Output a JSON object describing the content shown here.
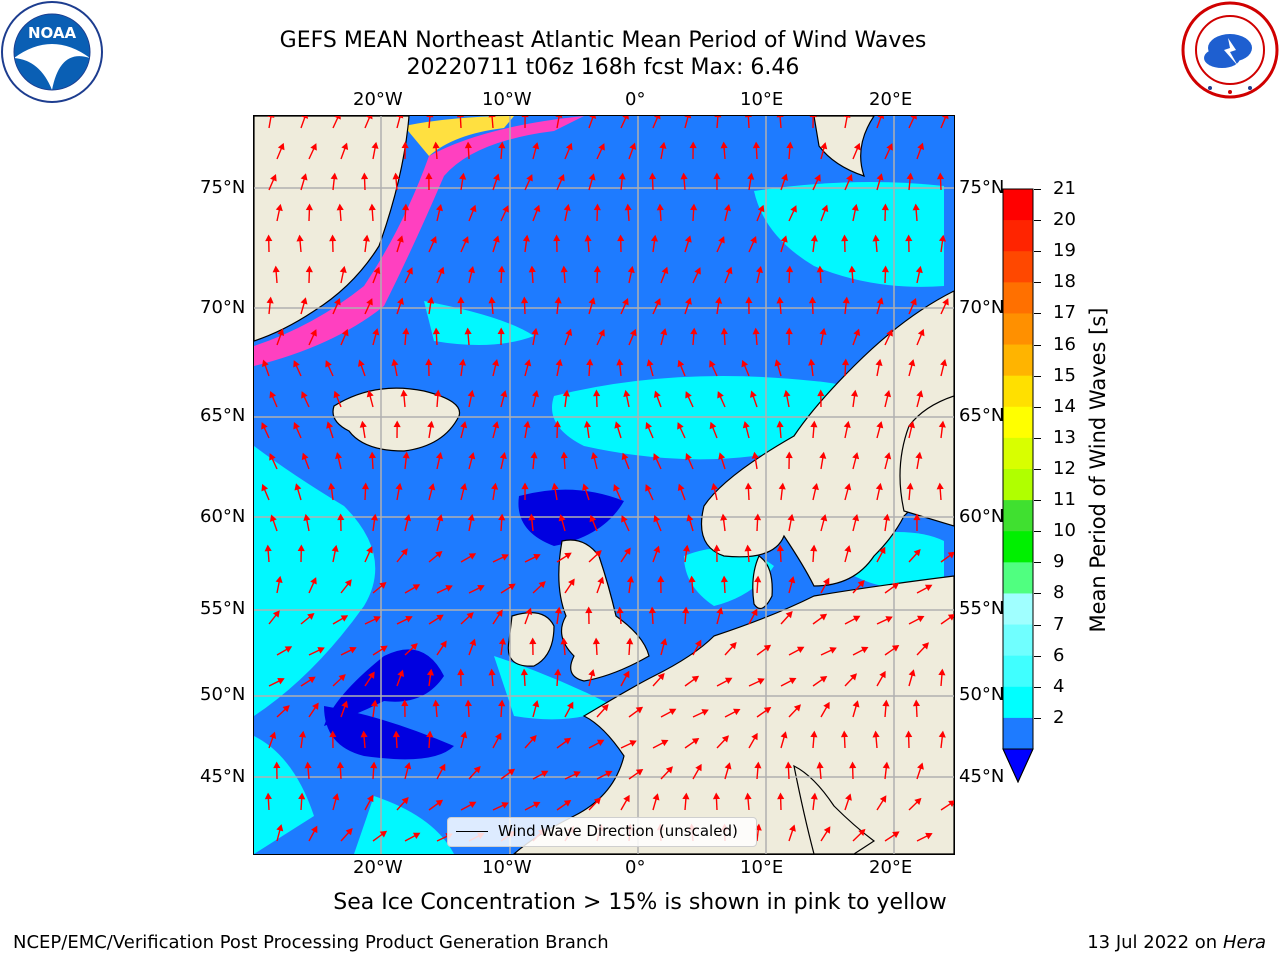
{
  "header": {
    "title_line1": "GEFS MEAN Northeast Atlantic Mean Period of Wind Waves",
    "title_line2": "20220711 t06z 168h fcst   Max: 6.46"
  },
  "logos": {
    "left": {
      "name": "NOAA",
      "text": "NOAA"
    },
    "right": {
      "name": "National Weather Service"
    }
  },
  "map": {
    "lon_ticks_top": [
      "20°W",
      "10°W",
      "0°",
      "10°E",
      "20°E"
    ],
    "lon_ticks_bottom": [
      "20°W",
      "10°W",
      "0°",
      "10°E",
      "20°E"
    ],
    "lat_ticks_left": [
      "75°N",
      "70°N",
      "65°N",
      "60°N",
      "55°N",
      "50°N",
      "45°N"
    ],
    "lat_ticks_right": [
      "75°N",
      "70°N",
      "65°N",
      "60°N",
      "55°N",
      "50°N",
      "45°N"
    ],
    "legend_label": "Wind Wave Direction (unscaled)",
    "colors": {
      "ocean_2_4": "#1e7bff",
      "ocean_4_6": "#00ffff",
      "ocean_below_2": "#0000e0",
      "land": "#efecdc",
      "ice_pink": "#ff40c0",
      "ice_yellow": "#ffe040",
      "arrows": "#ff0000",
      "grid": "#b0b0b0"
    }
  },
  "colorbar": {
    "title": "Mean Period of Wind Waves [s]",
    "labels": [
      "21",
      "20",
      "19",
      "18",
      "17",
      "16",
      "15",
      "14",
      "13",
      "12",
      "11",
      "10",
      "9",
      "8",
      "7",
      "6",
      "4",
      "2"
    ],
    "colors": [
      "#ff0000",
      "#ff2400",
      "#ff4800",
      "#ff7000",
      "#ff9000",
      "#ffb400",
      "#ffe000",
      "#ffff00",
      "#d8ff00",
      "#b0ff00",
      "#40e030",
      "#00f000",
      "#50ff80",
      "#a0ffff",
      "#70ffff",
      "#40ffff",
      "#00ffff",
      "#1e7bff",
      "#0000ff"
    ]
  },
  "subtitle": "Sea Ice Concentration > 15% is shown in pink to yellow",
  "footer": {
    "left": "NCEP/EMC/Verification Post Processing Product Generation Branch",
    "right_date": "13 Jul 2022 on ",
    "right_host": "Hera"
  }
}
